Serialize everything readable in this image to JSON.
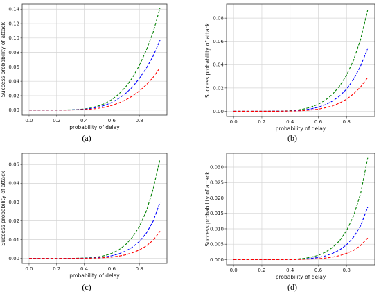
{
  "chart_data": [
    {
      "type": "line",
      "caption": "(a)",
      "xlabel": "probability of delay",
      "ylabel": "Success probability of attack",
      "xlim": [
        -0.05,
        1.0
      ],
      "ylim": [
        -0.007,
        0.147
      ],
      "xticks": [
        0.0,
        0.2,
        0.4,
        0.6,
        0.8
      ],
      "yticks": [
        0.0,
        0.02,
        0.04,
        0.06,
        0.08,
        0.1,
        0.12,
        0.14
      ],
      "ytick_labels": [
        "0.00",
        "0.02",
        "0.04",
        "0.06",
        "0.08",
        "0.10",
        "0.12",
        "0.14"
      ],
      "grid": true,
      "x": [
        0.0,
        0.1,
        0.2,
        0.3,
        0.35,
        0.4,
        0.45,
        0.5,
        0.55,
        0.6,
        0.65,
        0.7,
        0.75,
        0.8,
        0.85,
        0.9,
        0.95
      ],
      "series": [
        {
          "color": "#008000",
          "values": [
            0,
            0,
            0,
            0.0003,
            0.0007,
            0.0015,
            0.003,
            0.0055,
            0.009,
            0.0145,
            0.022,
            0.032,
            0.045,
            0.062,
            0.083,
            0.108,
            0.142
          ]
        },
        {
          "color": "#0000ff",
          "values": [
            0,
            0,
            0,
            0.0002,
            0.0005,
            0.0011,
            0.0022,
            0.004,
            0.0065,
            0.0105,
            0.016,
            0.023,
            0.032,
            0.044,
            0.058,
            0.075,
            0.097
          ]
        },
        {
          "color": "#ff0000",
          "values": [
            0,
            0,
            0,
            0.0001,
            0.0003,
            0.0007,
            0.0013,
            0.0024,
            0.004,
            0.0064,
            0.0097,
            0.014,
            0.0195,
            0.0265,
            0.035,
            0.0455,
            0.059
          ]
        }
      ]
    },
    {
      "type": "line",
      "caption": "(b)",
      "xlabel": "probability of delay",
      "ylabel": "Success probability of attack",
      "xlim": [
        -0.05,
        1.0
      ],
      "ylim": [
        -0.0045,
        0.092
      ],
      "xticks": [
        0.0,
        0.2,
        0.4,
        0.6,
        0.8
      ],
      "yticks": [
        0.0,
        0.02,
        0.04,
        0.06,
        0.08
      ],
      "ytick_labels": [
        "0.00",
        "0.02",
        "0.04",
        "0.06",
        "0.08"
      ],
      "grid": true,
      "x": [
        0.0,
        0.1,
        0.2,
        0.3,
        0.35,
        0.4,
        0.45,
        0.5,
        0.55,
        0.6,
        0.65,
        0.7,
        0.75,
        0.8,
        0.85,
        0.9,
        0.95
      ],
      "series": [
        {
          "color": "#008000",
          "values": [
            0,
            0,
            0,
            0.0001,
            0.0002,
            0.0005,
            0.001,
            0.002,
            0.0036,
            0.006,
            0.0095,
            0.0145,
            0.0215,
            0.031,
            0.044,
            0.062,
            0.087
          ]
        },
        {
          "color": "#0000ff",
          "values": [
            0,
            0,
            0,
            0.0001,
            0.0001,
            0.0003,
            0.0006,
            0.0012,
            0.0021,
            0.0035,
            0.0056,
            0.0087,
            0.013,
            0.019,
            0.0275,
            0.039,
            0.054
          ]
        },
        {
          "color": "#ff0000",
          "values": [
            0,
            0,
            0,
            0,
            0.0001,
            0.0002,
            0.0003,
            0.0006,
            0.0011,
            0.0018,
            0.003,
            0.0046,
            0.007,
            0.0103,
            0.015,
            0.021,
            0.029
          ]
        }
      ]
    },
    {
      "type": "line",
      "caption": "(c)",
      "xlabel": "probability of delay",
      "ylabel": "Success probability of attack",
      "xlim": [
        -0.05,
        1.0
      ],
      "ylim": [
        -0.0027,
        0.056
      ],
      "xticks": [
        0.0,
        0.2,
        0.4,
        0.6,
        0.8
      ],
      "yticks": [
        0.0,
        0.01,
        0.02,
        0.03,
        0.04,
        0.05
      ],
      "ytick_labels": [
        "0.00",
        "0.01",
        "0.02",
        "0.03",
        "0.04",
        "0.05"
      ],
      "grid": true,
      "x": [
        0.0,
        0.1,
        0.2,
        0.3,
        0.35,
        0.4,
        0.45,
        0.5,
        0.55,
        0.6,
        0.65,
        0.7,
        0.75,
        0.8,
        0.85,
        0.9,
        0.95
      ],
      "series": [
        {
          "color": "#008000",
          "values": [
            0,
            0,
            0,
            0,
            0.0001,
            0.0002,
            0.0004,
            0.0008,
            0.0015,
            0.0027,
            0.0045,
            0.0073,
            0.0113,
            0.017,
            0.025,
            0.037,
            0.053
          ]
        },
        {
          "color": "#0000ff",
          "values": [
            0,
            0,
            0,
            0,
            0,
            0.0001,
            0.0002,
            0.0004,
            0.0008,
            0.0014,
            0.0024,
            0.0039,
            0.006,
            0.009,
            0.0134,
            0.0198,
            0.03
          ]
        },
        {
          "color": "#ff0000",
          "values": [
            0,
            0,
            0,
            0,
            0,
            0,
            0.0001,
            0.0002,
            0.0004,
            0.0007,
            0.0012,
            0.0019,
            0.003,
            0.0045,
            0.0066,
            0.0097,
            0.0145
          ]
        }
      ]
    },
    {
      "type": "line",
      "caption": "(d)",
      "xlabel": "probability of delay",
      "ylabel": "Success probability of attack",
      "xlim": [
        -0.05,
        1.0
      ],
      "ylim": [
        -0.0017,
        0.0345
      ],
      "xticks": [
        0.0,
        0.2,
        0.4,
        0.6,
        0.8
      ],
      "yticks": [
        0.0,
        0.005,
        0.01,
        0.015,
        0.02,
        0.025,
        0.03
      ],
      "ytick_labels": [
        "0.000",
        "0.005",
        "0.010",
        "0.015",
        "0.020",
        "0.025",
        "0.030"
      ],
      "grid": true,
      "x": [
        0.0,
        0.1,
        0.2,
        0.3,
        0.35,
        0.4,
        0.45,
        0.5,
        0.55,
        0.6,
        0.65,
        0.7,
        0.75,
        0.8,
        0.85,
        0.9,
        0.95
      ],
      "series": [
        {
          "color": "#008000",
          "values": [
            0,
            0,
            0,
            0,
            0,
            0.0001,
            0.0002,
            0.0004,
            0.0008,
            0.0014,
            0.0024,
            0.0039,
            0.0061,
            0.0094,
            0.0142,
            0.0215,
            0.033
          ]
        },
        {
          "color": "#0000ff",
          "values": [
            0,
            0,
            0,
            0,
            0,
            0,
            0.0001,
            0.0002,
            0.0004,
            0.0007,
            0.0012,
            0.002,
            0.0031,
            0.0048,
            0.0073,
            0.011,
            0.017
          ]
        },
        {
          "color": "#ff0000",
          "values": [
            0,
            0,
            0,
            0,
            0,
            0,
            0,
            0.0001,
            0.0002,
            0.0003,
            0.0005,
            0.0008,
            0.0013,
            0.002,
            0.003,
            0.0046,
            0.007
          ]
        }
      ]
    }
  ]
}
